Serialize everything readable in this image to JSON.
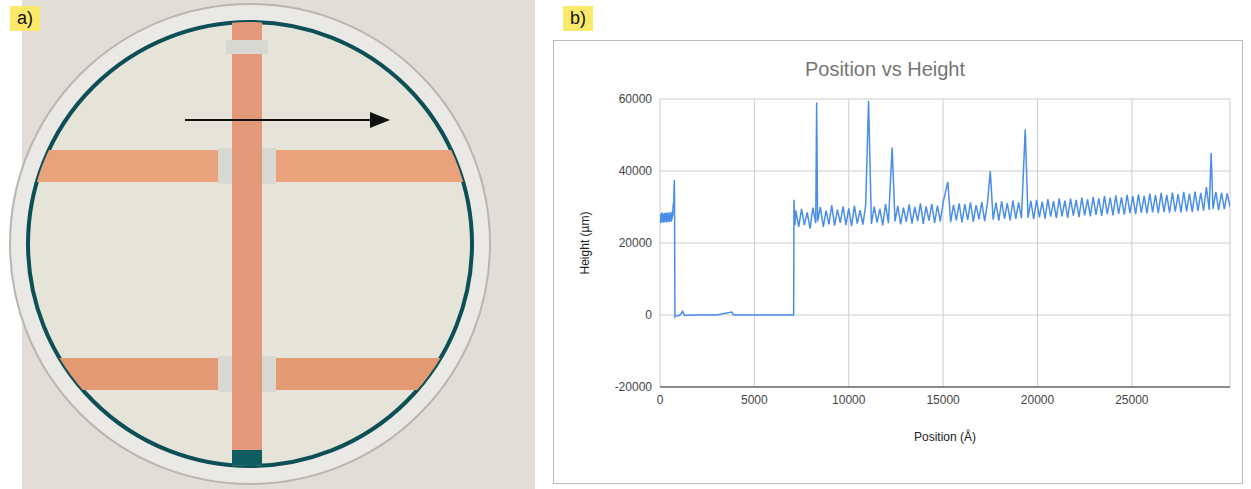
{
  "panel_labels": [
    "a)",
    "b)"
  ],
  "chart_data": {
    "type": "line",
    "title": "Position vs Height",
    "x_label": "Position (Å)",
    "y_label": "Height (µm)",
    "color": "#4a8ee8",
    "grid": true,
    "xlim": [
      0,
      30200
    ],
    "xticks": [
      0,
      5000,
      10000,
      15000,
      20000,
      25000
    ],
    "ylim": [
      -20000,
      60000
    ],
    "yticks": [
      -20000,
      0,
      20000,
      40000,
      60000
    ],
    "x": [
      0,
      20,
      40,
      60,
      80,
      100,
      120,
      140,
      160,
      180,
      200,
      220,
      240,
      260,
      280,
      300,
      320,
      340,
      360,
      380,
      400,
      420,
      440,
      460,
      480,
      500,
      520,
      540,
      560,
      580,
      600,
      620,
      640,
      660,
      680,
      700,
      720,
      740,
      760,
      770,
      790,
      820,
      1000,
      1100,
      1200,
      1300,
      2000,
      3000,
      3800,
      3900,
      5000,
      6000,
      7000,
      7080,
      7100,
      7150,
      7200,
      7350,
      7500,
      7650,
      7800,
      7950,
      8100,
      8250,
      8300,
      8350,
      8500,
      8650,
      8800,
      8950,
      9100,
      9250,
      9400,
      9550,
      9700,
      9850,
      10000,
      10150,
      10300,
      10450,
      10600,
      10750,
      10900,
      11050,
      11200,
      11350,
      11500,
      11650,
      11800,
      11950,
      12100,
      12300,
      12450,
      12600,
      12750,
      12900,
      13050,
      13200,
      13350,
      13500,
      13650,
      13800,
      13950,
      14100,
      14250,
      14400,
      14550,
      14700,
      14850,
      15000,
      15250,
      15400,
      15550,
      15700,
      15850,
      16000,
      16150,
      16300,
      16450,
      16600,
      16750,
      16900,
      17050,
      17200,
      17350,
      17500,
      17650,
      17800,
      17950,
      18100,
      18250,
      18400,
      18550,
      18700,
      18850,
      19000,
      19150,
      19350,
      19500,
      19650,
      19800,
      19950,
      20100,
      20250,
      20400,
      20550,
      20700,
      20850,
      21000,
      21150,
      21300,
      21450,
      21600,
      21750,
      21900,
      22050,
      22200,
      22350,
      22500,
      22650,
      22800,
      22950,
      23100,
      23250,
      23400,
      23550,
      23700,
      23850,
      24000,
      24150,
      24300,
      24450,
      24600,
      24750,
      24900,
      25050,
      25200,
      25350,
      25500,
      25650,
      25800,
      25950,
      26100,
      26250,
      26400,
      26550,
      26700,
      26850,
      27000,
      27150,
      27300,
      27450,
      27600,
      27750,
      27900,
      28050,
      28200,
      28350,
      28500,
      28650,
      28800,
      28950,
      29100,
      29200,
      29300,
      29450,
      29600,
      29750,
      29900,
      30050,
      30200
    ],
    "values": [
      26500,
      28000,
      25500,
      27500,
      26000,
      28500,
      25800,
      27800,
      26200,
      28200,
      25600,
      27600,
      26400,
      28400,
      25900,
      27900,
      26300,
      28300,
      25700,
      27700,
      26500,
      28500,
      26000,
      28000,
      25800,
      27800,
      26400,
      28600,
      26100,
      28100,
      25900,
      28300,
      26600,
      29000,
      27500,
      31000,
      30000,
      34000,
      37500,
      33000,
      -500,
      -300,
      -200,
      200,
      1000,
      -100,
      0,
      0,
      800,
      0,
      0,
      0,
      0,
      0,
      32000,
      25000,
      29000,
      24500,
      29500,
      25000,
      28500,
      24000,
      29800,
      25500,
      59000,
      26000,
      30000,
      24500,
      29000,
      25200,
      30500,
      24800,
      29300,
      25600,
      30200,
      25000,
      29600,
      24700,
      30400,
      25400,
      29100,
      25100,
      30600,
      59500,
      25300,
      30100,
      25700,
      29500,
      24900,
      30800,
      25500,
      46500,
      26000,
      30300,
      25200,
      29800,
      25900,
      30700,
      25400,
      30000,
      26100,
      31000,
      25300,
      30200,
      26200,
      30900,
      25600,
      30400,
      26000,
      31200,
      37000,
      25800,
      30600,
      26300,
      31000,
      25700,
      30800,
      26400,
      31300,
      25900,
      30500,
      26600,
      31400,
      26100,
      31000,
      40000,
      26500,
      31200,
      26200,
      31600,
      26800,
      31100,
      26300,
      31800,
      26700,
      31300,
      26900,
      51500,
      27000,
      31700,
      26600,
      32000,
      27100,
      31500,
      26800,
      32200,
      27300,
      31600,
      26900,
      32400,
      27400,
      31800,
      27000,
      32300,
      27600,
      32000,
      27200,
      32600,
      27700,
      32100,
      27400,
      32800,
      27800,
      32400,
      27500,
      33000,
      28000,
      32600,
      27700,
      33200,
      28100,
      32700,
      27900,
      33400,
      28300,
      33000,
      28000,
      33500,
      28400,
      33100,
      28200,
      33700,
      28500,
      33300,
      28300,
      33900,
      28600,
      33400,
      28400,
      34000,
      28700,
      33600,
      28500,
      34200,
      28800,
      33700,
      28600,
      34300,
      28900,
      33900,
      29000,
      35500,
      29200,
      45000,
      29500,
      34200,
      29100,
      34000,
      29400,
      33800,
      30000
    ]
  }
}
